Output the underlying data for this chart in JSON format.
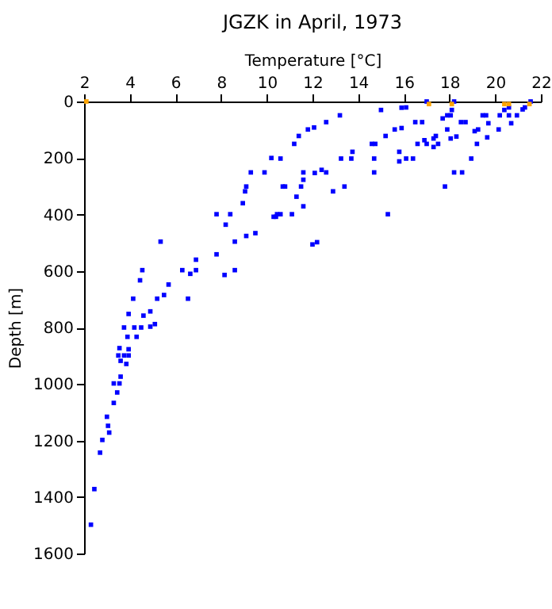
{
  "chart_data": {
    "type": "scatter",
    "title": "JGZK in April, 1973",
    "xlabel": "Temperature [°C]",
    "ylabel": "Depth [m]",
    "xlim": [
      2,
      22
    ],
    "xticks": [
      2,
      4,
      6,
      8,
      10,
      12,
      14,
      16,
      18,
      20,
      22
    ],
    "ylim": [
      1600,
      0
    ],
    "yticks": [
      0,
      200,
      400,
      600,
      800,
      1000,
      1200,
      1400,
      1600
    ],
    "grid": false,
    "marker": "square",
    "series": [
      {
        "color": "#0000ff",
        "x": [
          10.2,
          9.9,
          9.3,
          10.7,
          9.05,
          9.1,
          8.95,
          7.8,
          8.4,
          8.2,
          10.3,
          10.45,
          9.5,
          9.1,
          8.6,
          5.35,
          7.8,
          6.9,
          6.3,
          6.9,
          8.6,
          8.15,
          6.65,
          4.55,
          5.7,
          4.45,
          5.5,
          5.2,
          4.15,
          6.55,
          4.6,
          3.95,
          4.9,
          5.1,
          4.9,
          3.75,
          4.2,
          4.5,
          3.9,
          4.3,
          3.55,
          3.95,
          3.5,
          3.75,
          3.95,
          3.6,
          3.85,
          3.6,
          3.3,
          3.55,
          3.45,
          3.3,
          3.0,
          3.05,
          3.1,
          2.8,
          2.7,
          2.45,
          2.3,
          17.0,
          18.2,
          15.0,
          16.1,
          15.9,
          18.1,
          21.55,
          20.6,
          20.4,
          21.3,
          21.2,
          20.95,
          19.45,
          19.6,
          20.2,
          20.6,
          13.2,
          12.6,
          12.07,
          11.8,
          11.4,
          11.2,
          15.6,
          15.9,
          15.2,
          16.5,
          16.8,
          17.7,
          17.9,
          18.05,
          18.5,
          18.7,
          18.3,
          18.05,
          17.4,
          17.3,
          16.9,
          17.0,
          16.6,
          17.5,
          17.3,
          17.9,
          19.1,
          19.25,
          19.7,
          19.65,
          19.2,
          20.15,
          20.7,
          14.6,
          14.75,
          10.6,
          13.25,
          13.7,
          13.75,
          14.7,
          15.8,
          15.8,
          16.1,
          16.4,
          18.95,
          14.7,
          18.2,
          18.55,
          17.8,
          13.4,
          12.4,
          12.1,
          12.6,
          11.6,
          11.6,
          11.5,
          10.8,
          11.3,
          12.9,
          11.6,
          10.4,
          11.1,
          10.6,
          15.3,
          12.0,
          12.2
        ],
        "values": [
          200,
          251,
          251,
          301,
          318,
          301,
          360,
          399,
          399,
          436,
          408,
          399,
          466,
          476,
          496,
          496,
          541,
          560,
          597,
          597,
          597,
          614,
          610,
          597,
          648,
          633,
          685,
          698,
          698,
          698,
          758,
          752,
          743,
          788,
          797,
          800,
          800,
          800,
          833,
          833,
          873,
          877,
          899,
          899,
          899,
          918,
          929,
          974,
          998,
          998,
          1030,
          1067,
          1116,
          1148,
          1172,
          1198,
          1243,
          1372,
          1498,
          0,
          0,
          30,
          21,
          22,
          30,
          0,
          21,
          30,
          21,
          28,
          49,
          49,
          49,
          49,
          49,
          49,
          73,
          92,
          99,
          122,
          150,
          99,
          94,
          122,
          73,
          73,
          60,
          49,
          49,
          73,
          73,
          124,
          131,
          122,
          131,
          137,
          150,
          150,
          150,
          161,
          99,
          105,
          99,
          77,
          127,
          150,
          99,
          77,
          150,
          150,
          202,
          202,
          202,
          178,
          202,
          178,
          212,
          202,
          202,
          202,
          251,
          251,
          251,
          301,
          301,
          242,
          253,
          251,
          251,
          277,
          301,
          301,
          337,
          318,
          371,
          408,
          399,
          399,
          399,
          506,
          498
        ]
      },
      {
        "color": "#ffa500",
        "x": [
          2.1,
          17.1,
          18.1,
          20.4,
          20.6,
          21.5
        ],
        "values": [
          0,
          9,
          9,
          9,
          9,
          9
        ]
      }
    ]
  }
}
